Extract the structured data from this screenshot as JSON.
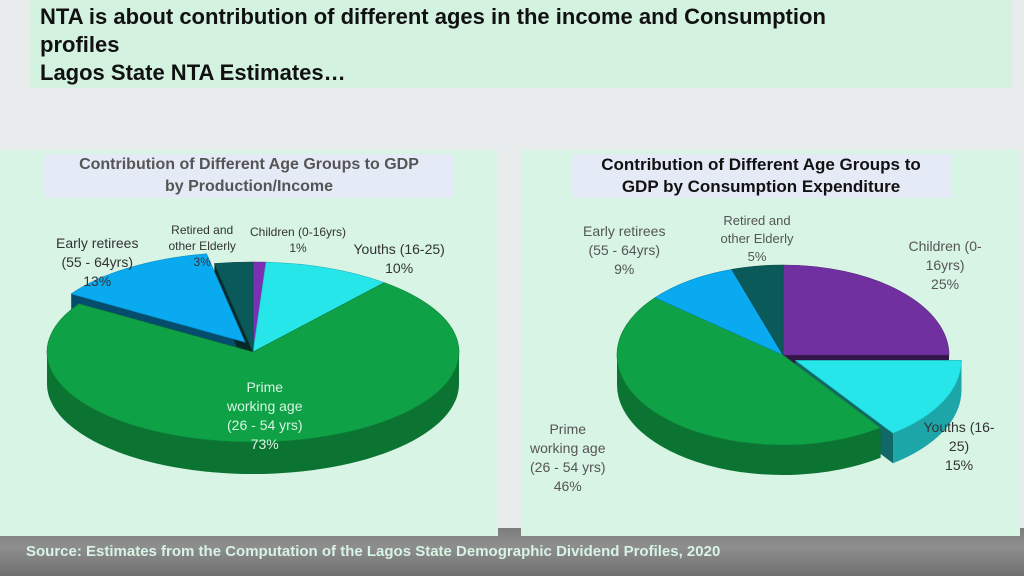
{
  "page": {
    "title_line1": "NTA is about contribution of different ages in the income and Consumption",
    "title_line2": "profiles",
    "title_line3": "Lagos State NTA Estimates…",
    "source": "Source: Estimates from the Computation of the Lagos State Demographic Dividend Profiles, 2020"
  },
  "chart_data": [
    {
      "type": "pie",
      "title_line1": "Contribution of Different Age Groups to GDP",
      "title_line2": "by Production/Income",
      "values_unit": "%",
      "slices": [
        {
          "name": "Children (0-16yrs)",
          "label_lines": [
            "Children (0-16yrs)",
            "1%"
          ],
          "value": 1,
          "color": "#7a2fb5"
        },
        {
          "name": "Youths (16-25)",
          "label_lines": [
            "Youths (16-25)",
            "10%"
          ],
          "value": 10,
          "color": "#27e6ea"
        },
        {
          "name": "Prime working age (26 - 54 yrs)",
          "label_lines": [
            "Prime",
            "working age",
            "(26 - 54 yrs)",
            "73%"
          ],
          "value": 73,
          "color": "#0fa145"
        },
        {
          "name": "Early retirees (55 - 64yrs)",
          "label_lines": [
            "Early retirees",
            "(55 - 64yrs)",
            "13%"
          ],
          "value": 13,
          "color": "#0aaaf0"
        },
        {
          "name": "Retired and other Elderly",
          "label_lines": [
            "Retired and",
            "other Elderly",
            "3%"
          ],
          "value": 3,
          "color": "#0b5a5a"
        }
      ]
    },
    {
      "type": "pie",
      "title_line1": "Contribution of Different Age Groups to",
      "title_line2": "GDP by Consumption Expenditure",
      "values_unit": "%",
      "slices": [
        {
          "name": "Children (0-16yrs)",
          "label_lines": [
            "Children (0-",
            "16yrs)",
            "25%"
          ],
          "value": 25,
          "color": "#7030a0"
        },
        {
          "name": "Youths (16-25)",
          "label_lines": [
            "Youths (16-",
            "25)",
            "15%"
          ],
          "value": 15,
          "color": "#27e6ea"
        },
        {
          "name": "Prime working age (26 - 54 yrs)",
          "label_lines": [
            "Prime",
            "working age",
            "(26 - 54 yrs)",
            "46%"
          ],
          "value": 46,
          "color": "#0fa145"
        },
        {
          "name": "Early retirees (55 - 64yrs)",
          "label_lines": [
            "Early retirees",
            "(55 - 64yrs)",
            "9%"
          ],
          "value": 9,
          "color": "#0aaaf0"
        },
        {
          "name": "Retired and other Elderly",
          "label_lines": [
            "Retired and",
            "other Elderly",
            "5%"
          ],
          "value": 5,
          "color": "#0b5a5a"
        }
      ]
    }
  ]
}
